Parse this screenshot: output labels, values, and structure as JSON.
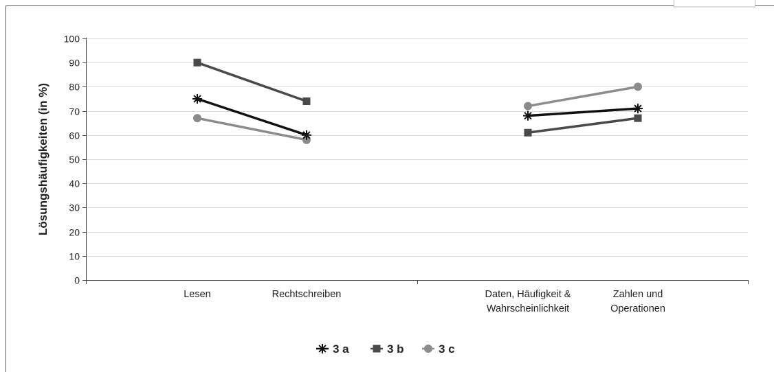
{
  "chart_data": {
    "type": "line",
    "ylabel": "Lösungshäufigkeiten (in %)",
    "ylim": [
      0,
      100
    ],
    "yticks": [
      0,
      10,
      20,
      30,
      40,
      50,
      60,
      70,
      80,
      90,
      100
    ],
    "grid": true,
    "legend_position": "bottom",
    "categories": [
      [
        "Lesen"
      ],
      [
        "Rechtschreiben"
      ],
      [
        "Daten, Häufigkeit &",
        "Wahrscheinlichkeit"
      ],
      [
        "Zahlen und",
        "Operationen"
      ]
    ],
    "segments": [
      [
        0,
        1
      ],
      [
        2,
        3
      ]
    ],
    "series": [
      {
        "name": "3 a",
        "marker": "star",
        "color": "#111111",
        "values": [
          75,
          60,
          68,
          71
        ]
      },
      {
        "name": "3 b",
        "marker": "square",
        "color": "#4a4a4a",
        "values": [
          90,
          74,
          61,
          67
        ]
      },
      {
        "name": "3 c",
        "marker": "diamond",
        "color": "#8c8c8c",
        "values": [
          67,
          58,
          72,
          80
        ]
      }
    ]
  }
}
